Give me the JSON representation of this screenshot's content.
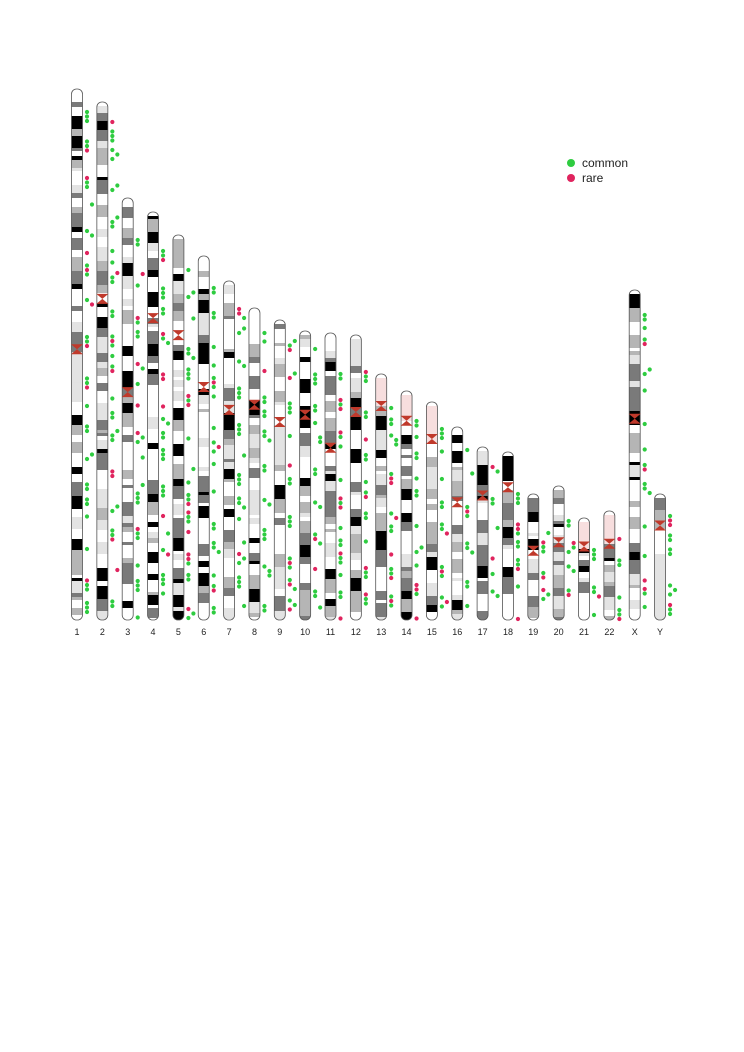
{
  "legend": {
    "common": {
      "label": "common",
      "color": "#2ecc40"
    },
    "rare": {
      "label": "rare",
      "color": "#e0245e"
    }
  },
  "colors": {
    "centromere": "#c0392b",
    "outline": "#555555",
    "band_light": "#ffffff",
    "band_gray": "#b5b5b5",
    "band_dark": "#7a7a7a",
    "band_black": "#000000",
    "band_pale": "#e3e3e3",
    "band_pink": "#f7dede"
  },
  "chromosomes": [
    {
      "label": "1",
      "length": 248
    },
    {
      "label": "2",
      "length": 242
    },
    {
      "label": "3",
      "length": 198
    },
    {
      "label": "4",
      "length": 190
    },
    {
      "label": "5",
      "length": 181
    },
    {
      "label": "6",
      "length": 171
    },
    {
      "label": "7",
      "length": 159
    },
    {
      "label": "8",
      "length": 145
    },
    {
      "label": "9",
      "length": 138
    },
    {
      "label": "10",
      "length": 134
    },
    {
      "label": "11",
      "length": 135
    },
    {
      "label": "12",
      "length": 133
    },
    {
      "label": "13",
      "length": 114
    },
    {
      "label": "14",
      "length": 107
    },
    {
      "label": "15",
      "length": 102
    },
    {
      "label": "16",
      "length": 90
    },
    {
      "label": "17",
      "length": 83
    },
    {
      "label": "18",
      "length": 80
    },
    {
      "label": "19",
      "length": 59
    },
    {
      "label": "20",
      "length": 64
    },
    {
      "label": "21",
      "length": 47
    },
    {
      "label": "22",
      "length": 51
    },
    {
      "label": "X",
      "length": 156
    },
    {
      "label": "Y",
      "length": 57
    }
  ]
}
